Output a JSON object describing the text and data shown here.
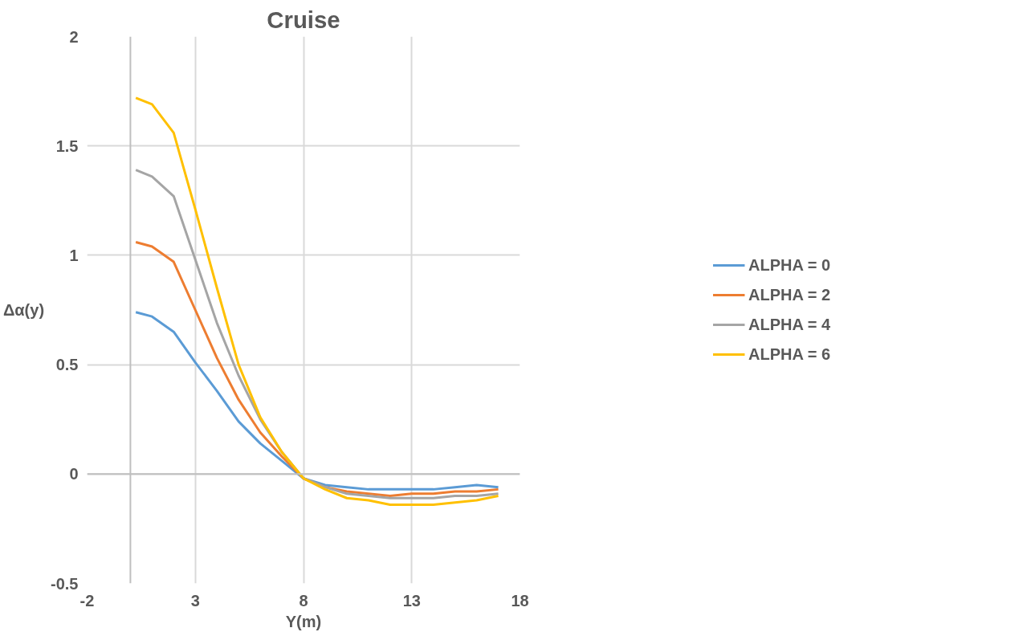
{
  "chart_data": {
    "type": "line",
    "title": "Cruise",
    "xlabel": "Y(m)",
    "ylabel": "Δα(y)",
    "x": [
      0.25,
      1,
      2,
      3,
      4,
      5,
      6,
      7,
      8,
      9,
      10,
      11,
      12,
      13,
      14,
      15,
      16,
      17
    ],
    "series": [
      {
        "name": "ALPHA = 0",
        "color": "#5b9bd5",
        "values": [
          0.74,
          0.72,
          0.65,
          0.51,
          0.38,
          0.24,
          0.14,
          0.06,
          -0.02,
          -0.05,
          -0.06,
          -0.07,
          -0.07,
          -0.07,
          -0.07,
          -0.06,
          -0.05,
          -0.06
        ]
      },
      {
        "name": "ALPHA = 2",
        "color": "#ed7d31",
        "values": [
          1.06,
          1.04,
          0.97,
          0.75,
          0.53,
          0.34,
          0.19,
          0.08,
          -0.02,
          -0.06,
          -0.08,
          -0.09,
          -0.1,
          -0.09,
          -0.09,
          -0.08,
          -0.08,
          -0.07
        ]
      },
      {
        "name": "ALPHA = 4",
        "color": "#a5a5a5",
        "values": [
          1.39,
          1.36,
          1.27,
          0.98,
          0.69,
          0.45,
          0.25,
          0.1,
          -0.02,
          -0.06,
          -0.09,
          -0.1,
          -0.11,
          -0.11,
          -0.11,
          -0.1,
          -0.1,
          -0.09
        ]
      },
      {
        "name": "ALPHA = 6",
        "color": "#ffc000",
        "values": [
          1.72,
          1.69,
          1.56,
          1.21,
          0.85,
          0.5,
          0.26,
          0.1,
          -0.02,
          -0.07,
          -0.11,
          -0.12,
          -0.14,
          -0.14,
          -0.14,
          -0.13,
          -0.12,
          -0.1
        ]
      }
    ],
    "xlim": [
      -2,
      18
    ],
    "xticks": [
      -2,
      3,
      8,
      13,
      18
    ],
    "ylim": [
      -0.5,
      2
    ],
    "yticks": [
      -0.5,
      0,
      0.5,
      1,
      1.5,
      2
    ],
    "grid": true,
    "legend": "right",
    "marker": "none",
    "line_style": "solid"
  }
}
